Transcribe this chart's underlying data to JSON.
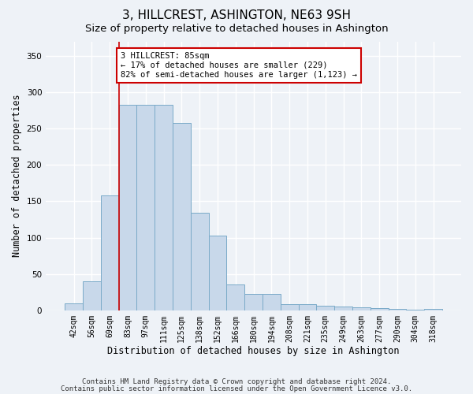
{
  "title": "3, HILLCREST, ASHINGTON, NE63 9SH",
  "subtitle": "Size of property relative to detached houses in Ashington",
  "xlabel": "Distribution of detached houses by size in Ashington",
  "ylabel": "Number of detached properties",
  "bar_color": "#c8d8ea",
  "bar_edge_color": "#7aaac8",
  "highlight_line_color": "#cc0000",
  "categories": [
    "42sqm",
    "56sqm",
    "69sqm",
    "83sqm",
    "97sqm",
    "111sqm",
    "125sqm",
    "138sqm",
    "152sqm",
    "166sqm",
    "180sqm",
    "194sqm",
    "208sqm",
    "221sqm",
    "235sqm",
    "249sqm",
    "263sqm",
    "277sqm",
    "290sqm",
    "304sqm",
    "318sqm"
  ],
  "values": [
    10,
    40,
    158,
    283,
    283,
    283,
    258,
    134,
    103,
    36,
    23,
    23,
    9,
    8,
    6,
    5,
    4,
    3,
    2,
    1,
    2
  ],
  "highlight_index": 3,
  "ylim": [
    0,
    370
  ],
  "yticks": [
    0,
    50,
    100,
    150,
    200,
    250,
    300,
    350
  ],
  "annotation_text": "3 HILLCREST: 85sqm\n← 17% of detached houses are smaller (229)\n82% of semi-detached houses are larger (1,123) →",
  "annotation_box_color": "#ffffff",
  "annotation_box_edge": "#cc0000",
  "footer1": "Contains HM Land Registry data © Crown copyright and database right 2024.",
  "footer2": "Contains public sector information licensed under the Open Government Licence v3.0.",
  "background_color": "#eef2f7",
  "plot_background": "#eef2f7",
  "grid_color": "#ffffff",
  "title_fontsize": 11,
  "subtitle_fontsize": 9.5,
  "tick_fontsize": 7,
  "ylabel_fontsize": 8.5,
  "xlabel_fontsize": 8.5,
  "footer_fontsize": 6.5
}
